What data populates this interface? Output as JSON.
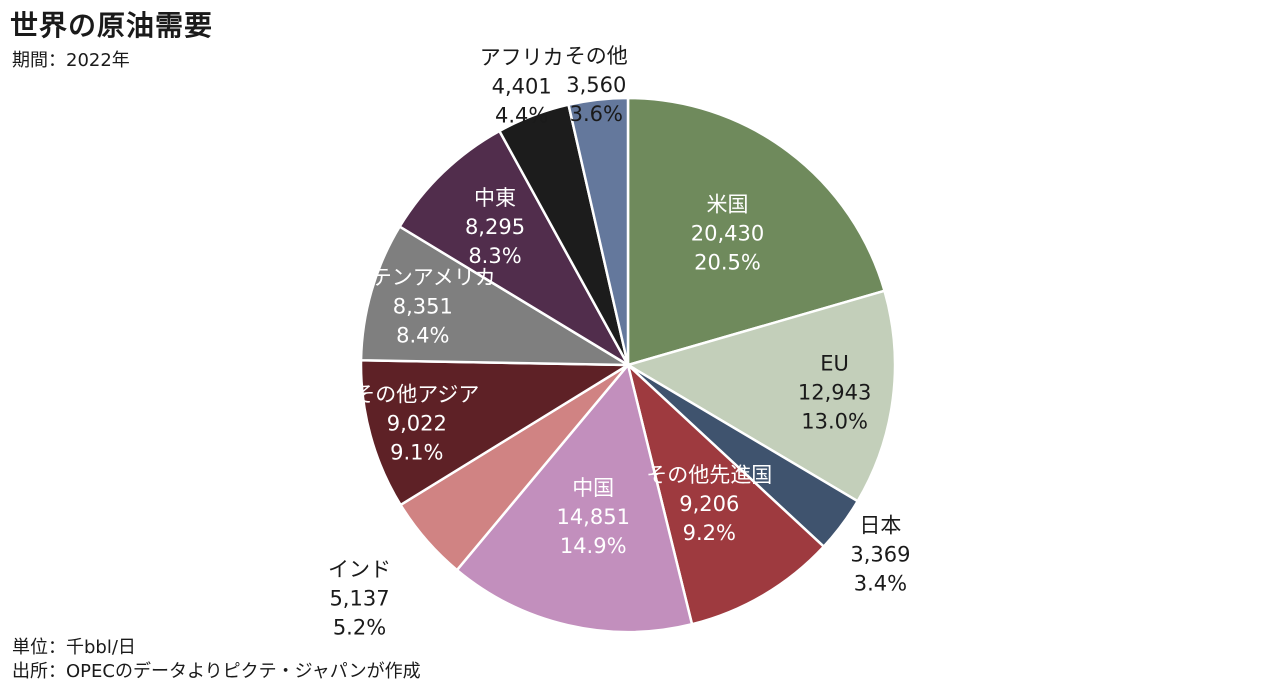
{
  "header": {
    "title": "世界の原油需要",
    "period": "期間：2022年"
  },
  "footer": {
    "unit": "単位：千bbl/日",
    "source": "出所：OPECのデータよりピクテ・ジャパンが作成"
  },
  "chart_data": {
    "type": "pie",
    "title": "世界の原油需要",
    "slices": [
      {
        "label": "米国",
        "value": 20430,
        "value_text": "20,430",
        "percent": "20.5%",
        "color": "#6f8a5c"
      },
      {
        "label": "EU",
        "value": 12943,
        "value_text": "12,943",
        "percent": "13.0%",
        "color": "#c3cfba"
      },
      {
        "label": "日本",
        "value": 3369,
        "value_text": "3,369",
        "percent": "3.4%",
        "color": "#3f536e"
      },
      {
        "label": "その他先進国",
        "value": 9206,
        "value_text": "9,206",
        "percent": "9.2%",
        "color": "#9e3a3f"
      },
      {
        "label": "中国",
        "value": 14851,
        "value_text": "14,851",
        "percent": "14.9%",
        "color": "#c28fbd"
      },
      {
        "label": "インド",
        "value": 5137,
        "value_text": "5,137",
        "percent": "5.2%",
        "color": "#d08383"
      },
      {
        "label": "その他アジア",
        "value": 9022,
        "value_text": "9,022",
        "percent": "9.1%",
        "color": "#5e2126"
      },
      {
        "label": "ラテンアメリカ",
        "value": 8351,
        "value_text": "8,351",
        "percent": "8.4%",
        "color": "#7f7f7f"
      },
      {
        "label": "中東",
        "value": 8295,
        "value_text": "8,295",
        "percent": "8.3%",
        "color": "#512d4c"
      },
      {
        "label": "アフリカ",
        "value": 4401,
        "value_text": "4,401",
        "percent": "4.4%",
        "color": "#1c1c1c"
      },
      {
        "label": "その他",
        "value": 3560,
        "value_text": "3,560",
        "percent": "3.6%",
        "color": "#64789c"
      }
    ]
  }
}
